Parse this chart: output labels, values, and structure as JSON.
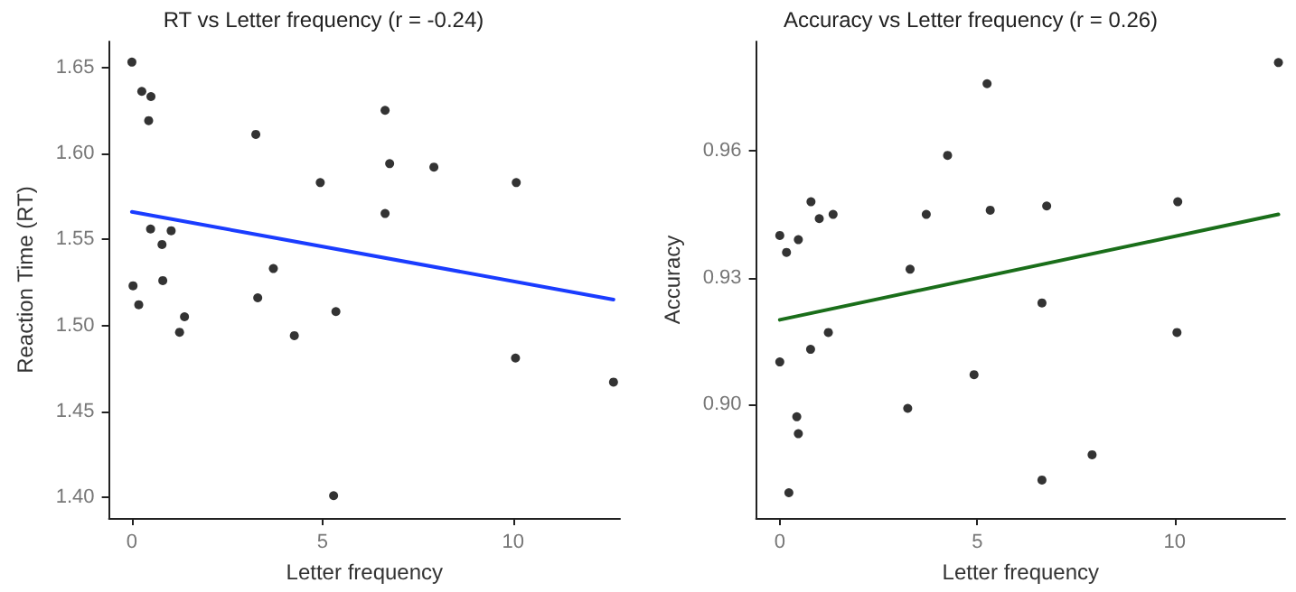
{
  "chart_data": [
    {
      "type": "scatter",
      "title": "RT vs Letter frequency (r = -0.24)",
      "xlabel": "Letter frequency",
      "ylabel": "Reaction Time (RT)",
      "xlim": [
        -0.6,
        12.8
      ],
      "ylim": [
        1.388,
        1.665
      ],
      "xticks": [
        0,
        5,
        10
      ],
      "yticks": [
        {
          "value": 1.4,
          "label": "1.40"
        },
        1.45,
        {
          "value": 1.5,
          "label": "1.50"
        },
        1.55,
        {
          "value": 1.6,
          "label": "1.60"
        },
        1.65
      ],
      "series": [
        {
          "color": "#000000",
          "marker": "circle",
          "x": [
            0.0,
            0.26,
            0.5,
            0.44,
            3.25,
            6.64,
            6.76,
            7.92,
            4.94,
            10.08,
            6.64,
            0.49,
            1.03,
            0.79,
            3.71,
            0.03,
            0.81,
            0.18,
            3.3,
            1.38,
            1.25,
            5.35,
            4.26,
            10.06,
            12.63,
            5.29
          ],
          "values": [
            1.653,
            1.636,
            1.633,
            1.619,
            1.611,
            1.625,
            1.594,
            1.592,
            1.583,
            1.583,
            1.565,
            1.556,
            1.555,
            1.547,
            1.533,
            1.523,
            1.526,
            1.512,
            1.516,
            1.505,
            1.496,
            1.508,
            1.494,
            1.481,
            1.467,
            1.401
          ]
        },
        {
          "type": "line",
          "color": "#1a3cff",
          "marker": "none",
          "x": [
            0,
            12.63
          ],
          "values": [
            1.566,
            1.515
          ]
        }
      ]
    },
    {
      "type": "scatter",
      "title": "Accuracy vs Letter frequency (r = 0.26)",
      "xlabel": "Letter frequency",
      "ylabel": "Accuracy",
      "xlim": [
        -0.6,
        12.8
      ],
      "ylim": [
        0.873,
        0.986
      ],
      "xticks": [
        0,
        5,
        10
      ],
      "yticks": [
        {
          "value": 0.9,
          "label": "0.90"
        },
        0.93,
        0.96
      ],
      "series": [
        {
          "color": "#000000",
          "marker": "circle",
          "x": [
            12.63,
            5.25,
            4.25,
            0.79,
            1.0,
            1.35,
            3.71,
            5.33,
            6.76,
            10.08,
            0.0,
            0.47,
            0.17,
            3.3,
            6.64,
            10.06,
            1.23,
            0.78,
            0.0,
            4.92,
            3.24,
            0.43,
            0.47,
            7.91,
            6.64,
            0.23
          ],
          "values": [
            0.981,
            0.976,
            0.959,
            0.948,
            0.944,
            0.945,
            0.945,
            0.946,
            0.947,
            0.948,
            0.94,
            0.939,
            0.936,
            0.932,
            0.924,
            0.917,
            0.917,
            0.913,
            0.91,
            0.907,
            0.899,
            0.897,
            0.893,
            0.888,
            0.882,
            0.879
          ]
        },
        {
          "type": "line",
          "color": "#1a6e1a",
          "marker": "none",
          "x": [
            0,
            12.63
          ],
          "values": [
            0.92,
            0.945
          ]
        }
      ]
    }
  ]
}
